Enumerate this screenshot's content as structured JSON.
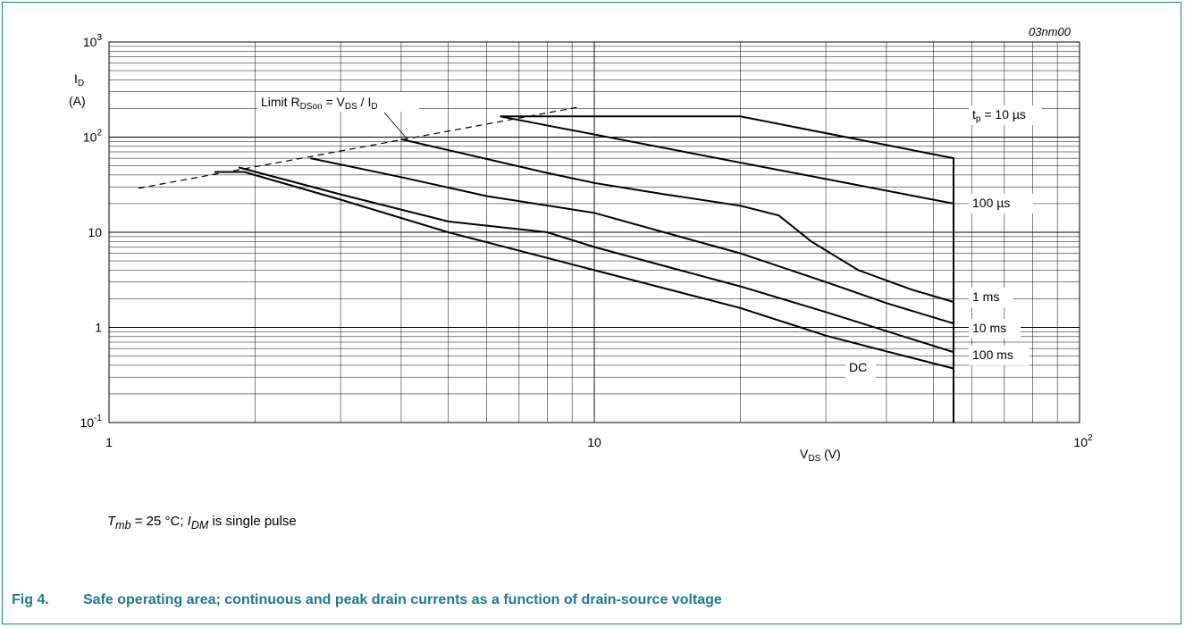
{
  "figure_id": "03nm00",
  "caption": {
    "number": "Fig 4.",
    "text": "Safe operating area; continuous and peak drain currents as a function of drain-source voltage"
  },
  "conditions": {
    "t_sym": "T",
    "t_sub": "mb",
    "t_value": " = 25 °C; ",
    "i_sym": "I",
    "i_sub": "DM",
    "i_tail": " is single pulse"
  },
  "chart_data": {
    "type": "line",
    "xscale": "log",
    "yscale": "log",
    "xlim": [
      1,
      100
    ],
    "ylim": [
      0.1,
      1000
    ],
    "grid": true,
    "x_ticks": [
      {
        "value": 1,
        "base": "1",
        "exp": ""
      },
      {
        "value": 10,
        "base": "10",
        "exp": ""
      },
      {
        "value": 100,
        "base": "10",
        "exp": "2"
      }
    ],
    "y_ticks": [
      {
        "value": 0.1,
        "base": "10",
        "exp": "-1"
      },
      {
        "value": 1,
        "base": "1",
        "exp": ""
      },
      {
        "value": 10,
        "base": "10",
        "exp": ""
      },
      {
        "value": 100,
        "base": "10",
        "exp": "2"
      },
      {
        "value": 1000,
        "base": "10",
        "exp": "3"
      }
    ],
    "xlabel": {
      "sym": "V",
      "sub": "DS",
      "unit": " (V)"
    },
    "ylabel": {
      "sym": "I",
      "sub": "D",
      "unit": "(A)"
    },
    "limit_line": {
      "label": {
        "prefix": "Limit R",
        "sub1": "DSon",
        "mid": " = V",
        "sub2": "DS",
        "mid2": " / I",
        "sub3": "D"
      },
      "x": [
        1.15,
        9.2
      ],
      "y": [
        29,
        205
      ]
    },
    "series": [
      {
        "name": "tp = 10 µs",
        "label": {
          "pre": "t",
          "sub": "p",
          "post": " = 10 µs"
        },
        "x": [
          6.4,
          20,
          55,
          55
        ],
        "y": [
          165,
          165,
          60,
          0.1
        ]
      },
      {
        "name": "100 µs",
        "label": {
          "pre": "100 µs",
          "sub": "",
          "post": ""
        },
        "x": [
          6.4,
          55
        ],
        "y": [
          165,
          20
        ]
      },
      {
        "name": "1 ms",
        "label": {
          "pre": "1 ms",
          "sub": "",
          "post": ""
        },
        "x": [
          4.0,
          8,
          10,
          14,
          20,
          24,
          28,
          35,
          45,
          55
        ],
        "y": [
          95,
          42,
          33,
          25,
          19,
          15,
          8,
          4,
          2.5,
          1.85
        ]
      },
      {
        "name": "10 ms",
        "label": {
          "pre": "10 ms",
          "sub": "",
          "post": ""
        },
        "x": [
          2.6,
          4,
          6,
          10,
          15,
          20,
          30,
          40,
          55
        ],
        "y": [
          60,
          38,
          24,
          16,
          9,
          6,
          3,
          1.8,
          1.1
        ]
      },
      {
        "name": "100 ms",
        "label": {
          "pre": "100 ms",
          "sub": "",
          "post": ""
        },
        "x": [
          1.85,
          3,
          5,
          8,
          10,
          15,
          20,
          30,
          55
        ],
        "y": [
          48,
          25,
          13,
          10,
          7,
          4,
          2.7,
          1.45,
          0.55
        ]
      },
      {
        "name": "DC",
        "label": {
          "pre": "DC",
          "sub": "",
          "post": ""
        },
        "x": [
          1.65,
          1.9,
          3,
          5,
          10,
          20,
          30,
          40,
          55
        ],
        "y": [
          43,
          43,
          22,
          10,
          4,
          1.6,
          0.82,
          0.56,
          0.37
        ]
      }
    ]
  }
}
